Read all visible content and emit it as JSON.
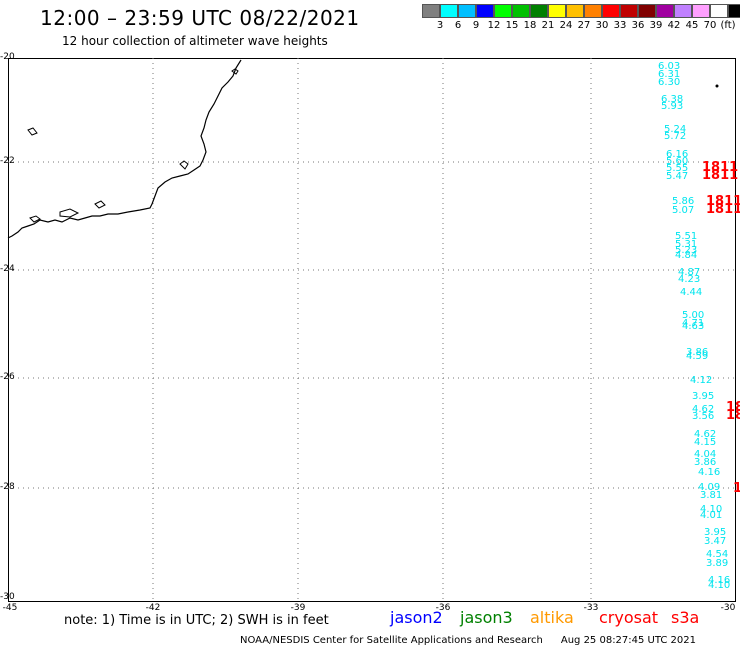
{
  "header": {
    "title": "12:00 – 23:59 UTC 08/22/2021",
    "subtitle": "12 hour collection of altimeter wave heights"
  },
  "legend": {
    "colors": [
      "#808080",
      "#00ffff",
      "#00bfff",
      "#0000ff",
      "#00ff00",
      "#00c000",
      "#008000",
      "#ffff00",
      "#ffc000",
      "#ff8000",
      "#ff0000",
      "#c00000",
      "#800000",
      "#a000a0",
      "#c080ff",
      "#ffa0ff",
      "#ffffff",
      "#000000"
    ],
    "labels": [
      "3",
      "6",
      "9",
      "12",
      "15",
      "18",
      "21",
      "24",
      "27",
      "30",
      "33",
      "36",
      "39",
      "42",
      "45",
      "70",
      "(ft)"
    ]
  },
  "axes": {
    "y_labels": [
      "-20",
      "-22",
      "-24",
      "-26",
      "-28",
      "-30"
    ],
    "x_labels": [
      "-45",
      "-42",
      "-39",
      "-36",
      "-33",
      "-30"
    ]
  },
  "cyan_values": [
    "6.03",
    "6.31",
    "6.30",
    "6.38",
    "5.93",
    "5.24",
    "5.72",
    "6.16",
    "5.60",
    "5.55",
    "5.47",
    "5.86",
    "5.07",
    "5.51",
    "5.31",
    "5.23",
    "4.84",
    "4.87",
    "4.23",
    "4.44",
    "5.00",
    "4.71",
    "4.63",
    "3.86",
    "4.59",
    "4.12",
    "3.95",
    "4.62",
    "3.56",
    "4.62",
    "4.15",
    "4.04",
    "3.86",
    "4.16",
    "4.09",
    "3.81",
    "4.10",
    "4.01",
    "3.95",
    "3.47",
    "4.54",
    "3.89",
    "4.16",
    "4.10"
  ],
  "red_values": [
    "1811",
    "1811",
    "1811",
    "1811",
    "18",
    "18",
    "1"
  ],
  "note": "note: 1) Time is in UTC; 2) SWH is in feet",
  "satellites": [
    {
      "name": "jason2",
      "color": "#0000ff"
    },
    {
      "name": "jason3",
      "color": "#008000"
    },
    {
      "name": "altika",
      "color": "#ff9900"
    },
    {
      "name": "cryosat",
      "color": "#ff0000"
    },
    {
      "name": "s3a",
      "color": "#ff0000"
    }
  ],
  "footer": {
    "credit": "NOAA/NESDIS Center for Satellite Applications and Research",
    "timestamp": "Aug 25 08:27:45 UTC 2021"
  }
}
